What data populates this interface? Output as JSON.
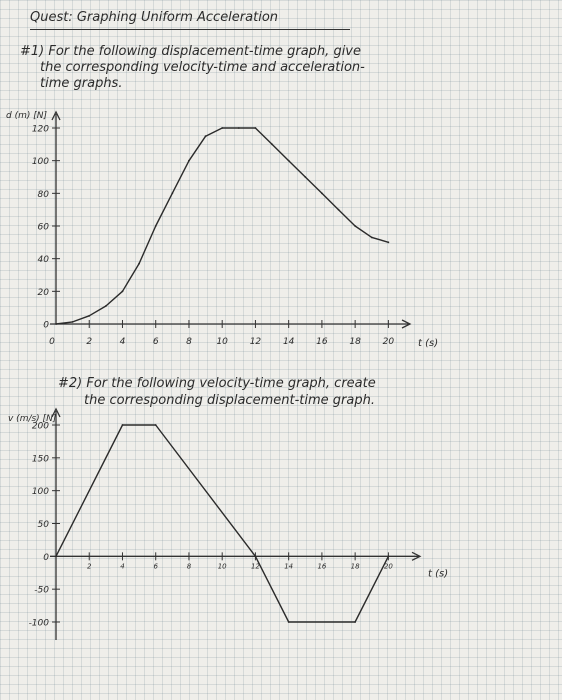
{
  "worksheet": {
    "title": "Quest: Graphing Uniform Acceleration",
    "problem1": {
      "line1": "#1) For the following displacement-time graph, give",
      "line2": "the corresponding velocity-time and acceleration-",
      "line3": "time graphs."
    },
    "problem2": {
      "line1": "#2) For the following velocity-time graph, create",
      "line2": "the corresponding displacement-time graph."
    }
  },
  "chart_data": [
    {
      "type": "line",
      "title": "",
      "ylabel": "d (m) [N]",
      "xlabel": "t (s)",
      "x_ticks": [
        "0",
        "2",
        "4",
        "6",
        "8",
        "10",
        "12",
        "14",
        "16",
        "18",
        "20"
      ],
      "y_ticks": [
        "0",
        "20",
        "40",
        "60",
        "80",
        "100",
        "120"
      ],
      "xlim": [
        0,
        21
      ],
      "ylim": [
        0,
        120
      ],
      "grid": false,
      "series": [
        {
          "x": [
            0,
            1,
            2,
            3,
            4,
            5,
            6,
            7,
            8,
            9,
            10,
            11,
            12,
            13,
            14,
            15,
            16,
            17,
            18,
            19,
            20
          ],
          "y": [
            0,
            1.3,
            5,
            11,
            20,
            37,
            60,
            80,
            100,
            115,
            120,
            120,
            120,
            110,
            100,
            90,
            80,
            70,
            60,
            53,
            50
          ]
        }
      ]
    },
    {
      "type": "line",
      "title": "",
      "ylabel": "v (m/s) [N]",
      "xlabel": "t (s)",
      "x_ticks": [
        "2",
        "4",
        "6",
        "8",
        "10",
        "12",
        "14",
        "16",
        "18",
        "20"
      ],
      "y_ticks": [
        "200",
        "150",
        "100",
        "50",
        "0",
        "-50",
        "-100"
      ],
      "xlim": [
        0,
        21
      ],
      "ylim": [
        -100,
        200
      ],
      "grid": false,
      "series": [
        {
          "x": [
            0,
            4,
            6,
            12,
            14,
            18,
            20
          ],
          "y": [
            0,
            200,
            200,
            0,
            -100,
            -100,
            0
          ]
        }
      ]
    }
  ]
}
